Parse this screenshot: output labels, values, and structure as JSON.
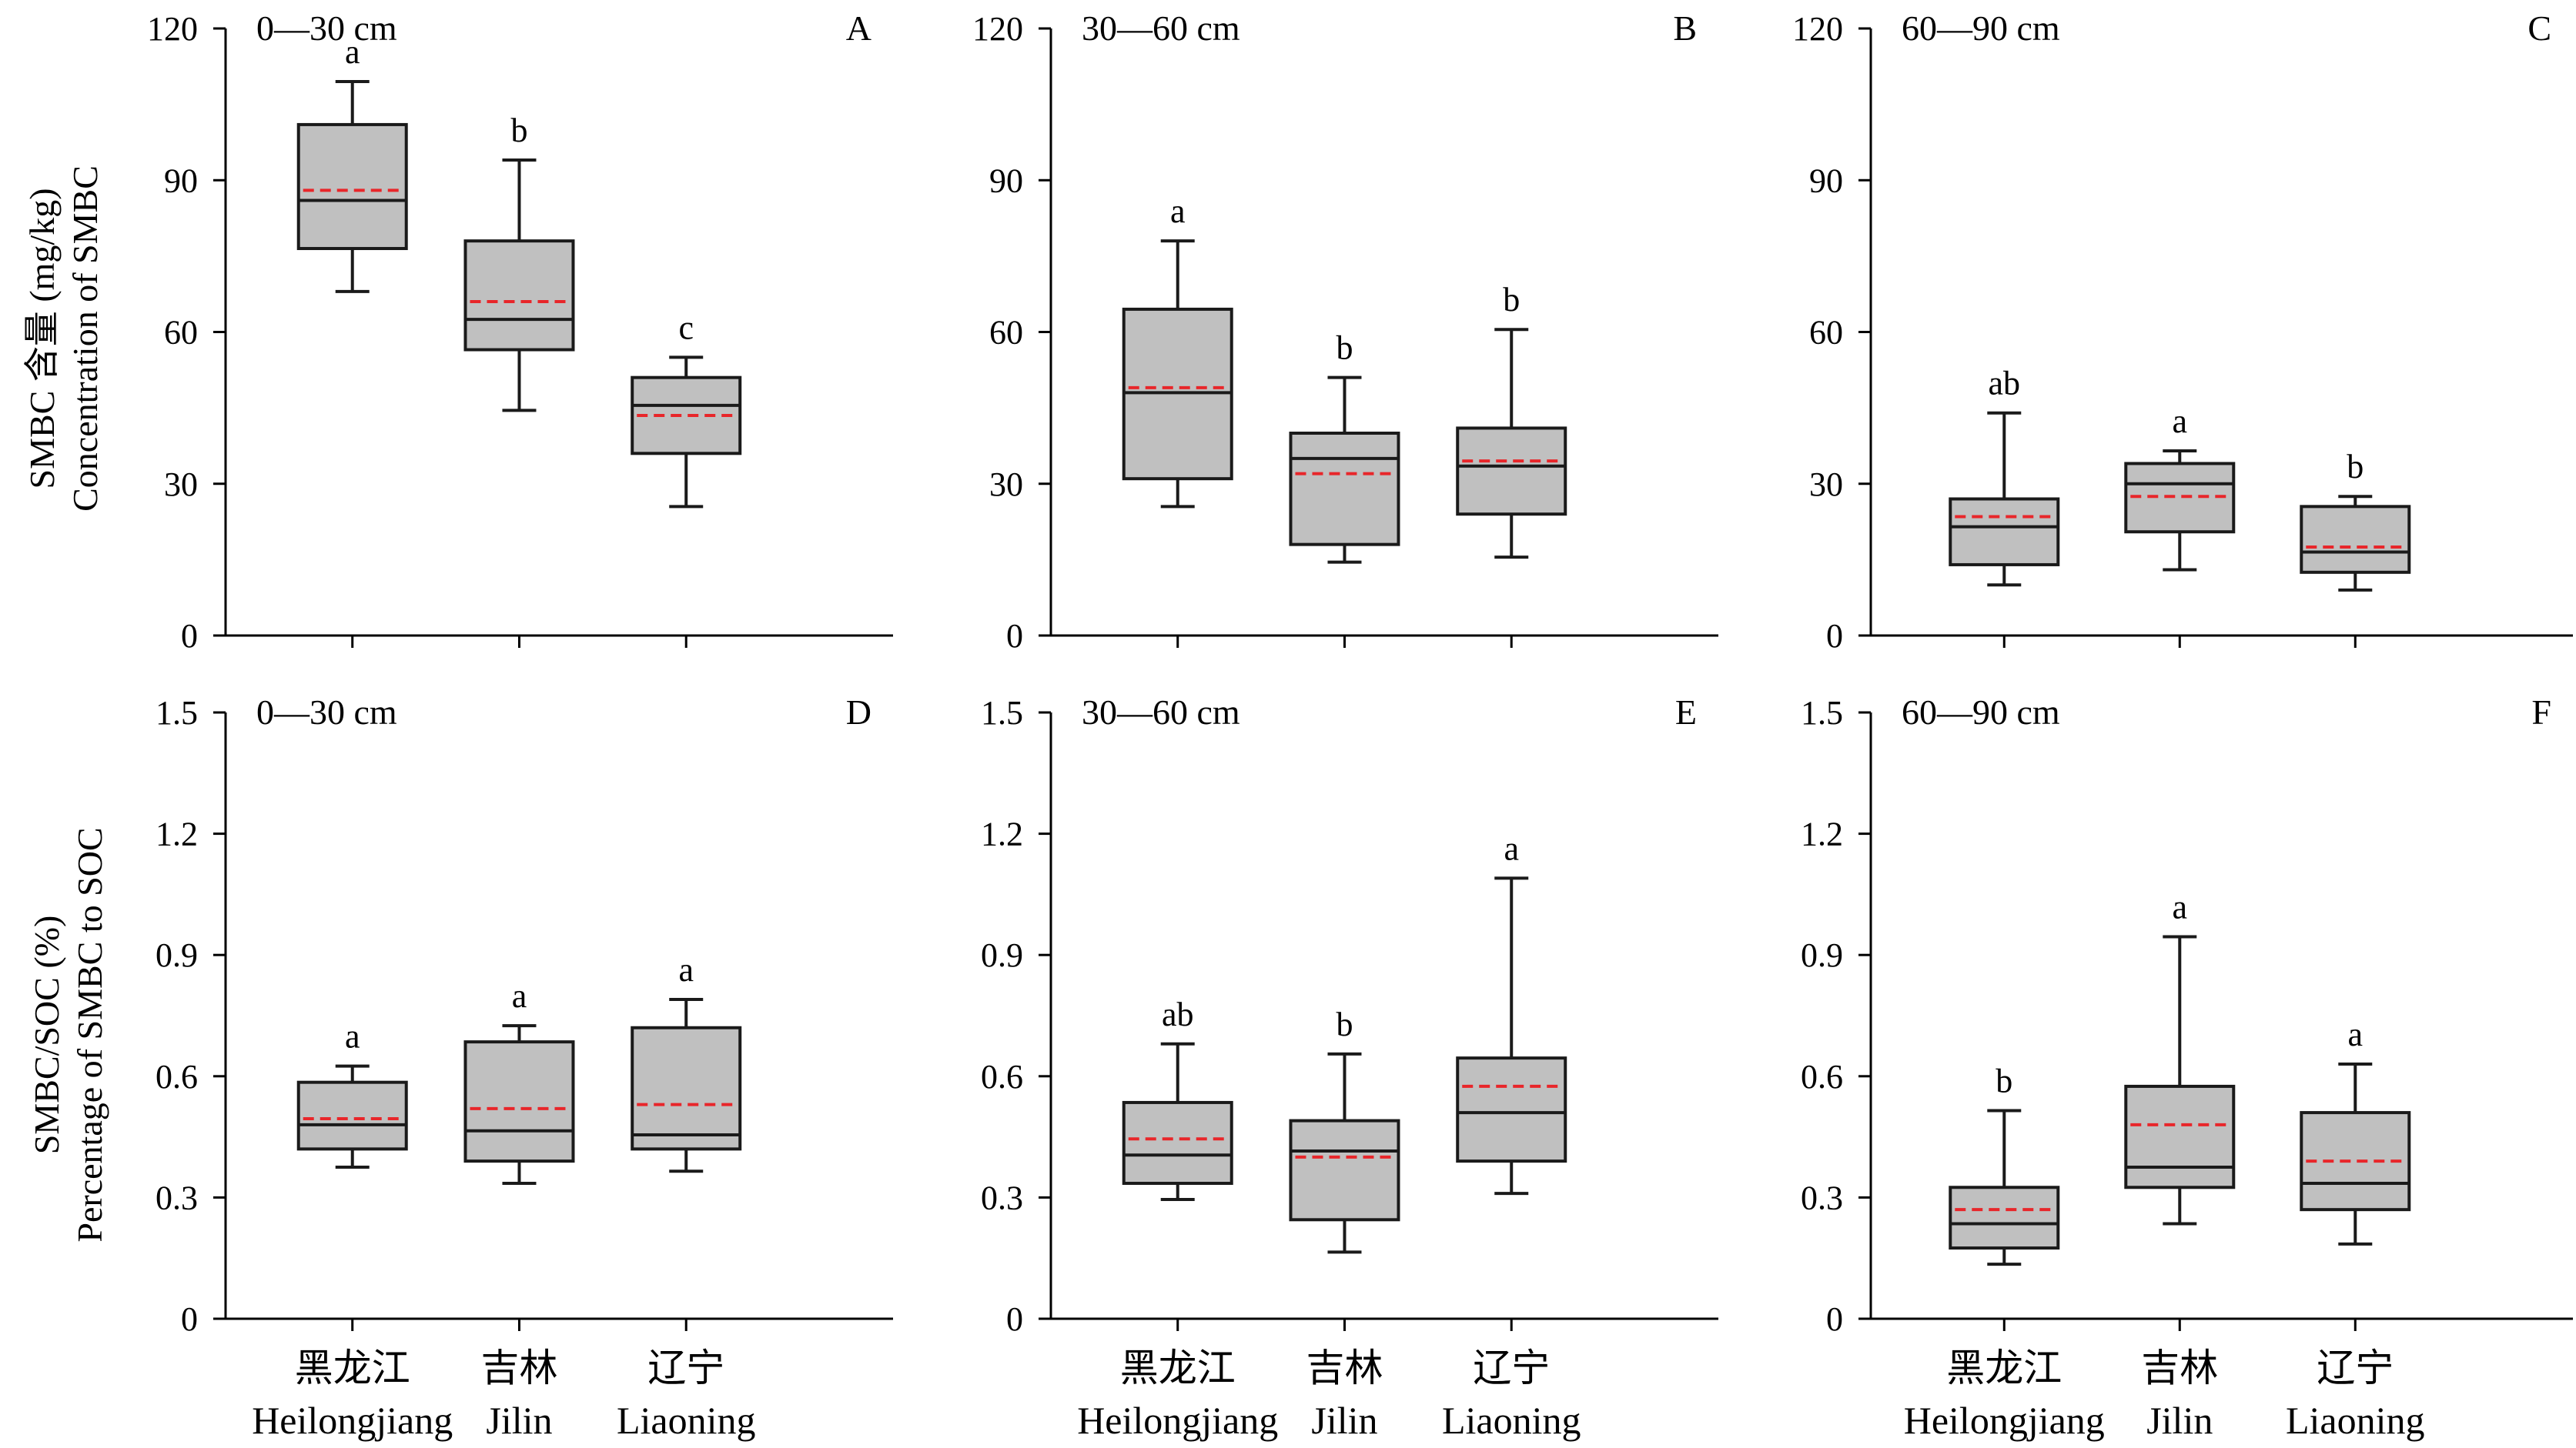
{
  "figure": {
    "ylabel_top": [
      "SMBC 含量 (mg/kg)",
      "Concentration of SMBC"
    ],
    "ylabel_bottom": [
      "SMBC/SOC (%)",
      "Percentage of SMBC to SOC"
    ],
    "categories_cn": [
      "黑龙江",
      "吉林",
      "辽宁"
    ],
    "categories_en": [
      "Heilongjiang",
      "Jilin",
      "Liaoning"
    ],
    "colors": {
      "box_fill": "#c0c0c0",
      "box_stroke": "#1a1a1a",
      "mean_line": "#e8262a"
    }
  },
  "chart_data": [
    {
      "type": "box",
      "panel": "A",
      "title": "0—30 cm",
      "ylim": [
        0,
        120
      ],
      "yticks": [
        "0",
        "30",
        "60",
        "90",
        "120"
      ],
      "boxes": [
        {
          "category": "Heilongjiang",
          "min": 68,
          "q1": 76.5,
          "median": 86,
          "q3": 101,
          "max": 109.5,
          "mean": 88,
          "sig": "a"
        },
        {
          "category": "Jilin",
          "min": 44.5,
          "q1": 56.5,
          "median": 62.5,
          "q3": 78,
          "max": 94,
          "mean": 66,
          "sig": "b"
        },
        {
          "category": "Liaoning",
          "min": 25.5,
          "q1": 36,
          "median": 45.5,
          "q3": 51,
          "max": 55,
          "mean": 43.5,
          "sig": "c"
        }
      ]
    },
    {
      "type": "box",
      "panel": "B",
      "title": "30—60 cm",
      "ylim": [
        0,
        120
      ],
      "yticks": [
        "0",
        "30",
        "60",
        "90",
        "120"
      ],
      "boxes": [
        {
          "category": "Heilongjiang",
          "min": 25.5,
          "q1": 31,
          "median": 48,
          "q3": 64.5,
          "max": 78,
          "mean": 49,
          "sig": "a"
        },
        {
          "category": "Jilin",
          "min": 14.5,
          "q1": 18,
          "median": 35,
          "q3": 40,
          "max": 51,
          "mean": 32,
          "sig": "b"
        },
        {
          "category": "Liaoning",
          "min": 15.5,
          "q1": 24,
          "median": 33.5,
          "q3": 41,
          "max": 60.5,
          "mean": 34.5,
          "sig": "b"
        }
      ]
    },
    {
      "type": "box",
      "panel": "C",
      "title": "60—90 cm",
      "ylim": [
        0,
        120
      ],
      "yticks": [
        "0",
        "30",
        "60",
        "90",
        "120"
      ],
      "boxes": [
        {
          "category": "Heilongjiang",
          "min": 10,
          "q1": 14,
          "median": 21.5,
          "q3": 27,
          "max": 44,
          "mean": 23.5,
          "sig": "ab"
        },
        {
          "category": "Jilin",
          "min": 13,
          "q1": 20.5,
          "median": 30,
          "q3": 34,
          "max": 36.5,
          "mean": 27.5,
          "sig": "a"
        },
        {
          "category": "Liaoning",
          "min": 9,
          "q1": 12.5,
          "median": 16.5,
          "q3": 25.5,
          "max": 27.5,
          "mean": 17.5,
          "sig": "b"
        }
      ]
    },
    {
      "type": "box",
      "panel": "D",
      "title": "0—30 cm",
      "ylim": [
        0,
        1.5
      ],
      "yticks": [
        "0",
        "0.3",
        "0.6",
        "0.9",
        "1.2",
        "1.5"
      ],
      "boxes": [
        {
          "category": "Heilongjiang",
          "min": 0.375,
          "q1": 0.42,
          "median": 0.48,
          "q3": 0.585,
          "max": 0.625,
          "mean": 0.495,
          "sig": "a"
        },
        {
          "category": "Jilin",
          "min": 0.335,
          "q1": 0.39,
          "median": 0.465,
          "q3": 0.685,
          "max": 0.725,
          "mean": 0.52,
          "sig": "a"
        },
        {
          "category": "Liaoning",
          "min": 0.365,
          "q1": 0.42,
          "median": 0.455,
          "q3": 0.72,
          "max": 0.79,
          "mean": 0.53,
          "sig": "a"
        }
      ]
    },
    {
      "type": "box",
      "panel": "E",
      "title": "30—60 cm",
      "ylim": [
        0,
        1.5
      ],
      "yticks": [
        "0",
        "0.3",
        "0.6",
        "0.9",
        "1.2",
        "1.5"
      ],
      "boxes": [
        {
          "category": "Heilongjiang",
          "min": 0.295,
          "q1": 0.335,
          "median": 0.405,
          "q3": 0.535,
          "max": 0.68,
          "mean": 0.445,
          "sig": "ab"
        },
        {
          "category": "Jilin",
          "min": 0.165,
          "q1": 0.245,
          "median": 0.415,
          "q3": 0.49,
          "max": 0.655,
          "mean": 0.4,
          "sig": "b"
        },
        {
          "category": "Liaoning",
          "min": 0.31,
          "q1": 0.39,
          "median": 0.51,
          "q3": 0.645,
          "max": 1.09,
          "mean": 0.575,
          "sig": "a"
        }
      ]
    },
    {
      "type": "box",
      "panel": "F",
      "title": "60—90 cm",
      "ylim": [
        0,
        1.5
      ],
      "yticks": [
        "0",
        "0.3",
        "0.6",
        "0.9",
        "1.2",
        "1.5"
      ],
      "boxes": [
        {
          "category": "Heilongjiang",
          "min": 0.135,
          "q1": 0.175,
          "median": 0.235,
          "q3": 0.325,
          "max": 0.515,
          "mean": 0.27,
          "sig": "b"
        },
        {
          "category": "Jilin",
          "min": 0.235,
          "q1": 0.325,
          "median": 0.375,
          "q3": 0.575,
          "max": 0.945,
          "mean": 0.48,
          "sig": "a"
        },
        {
          "category": "Liaoning",
          "min": 0.185,
          "q1": 0.27,
          "median": 0.335,
          "q3": 0.51,
          "max": 0.63,
          "mean": 0.39,
          "sig": "a"
        }
      ]
    }
  ]
}
